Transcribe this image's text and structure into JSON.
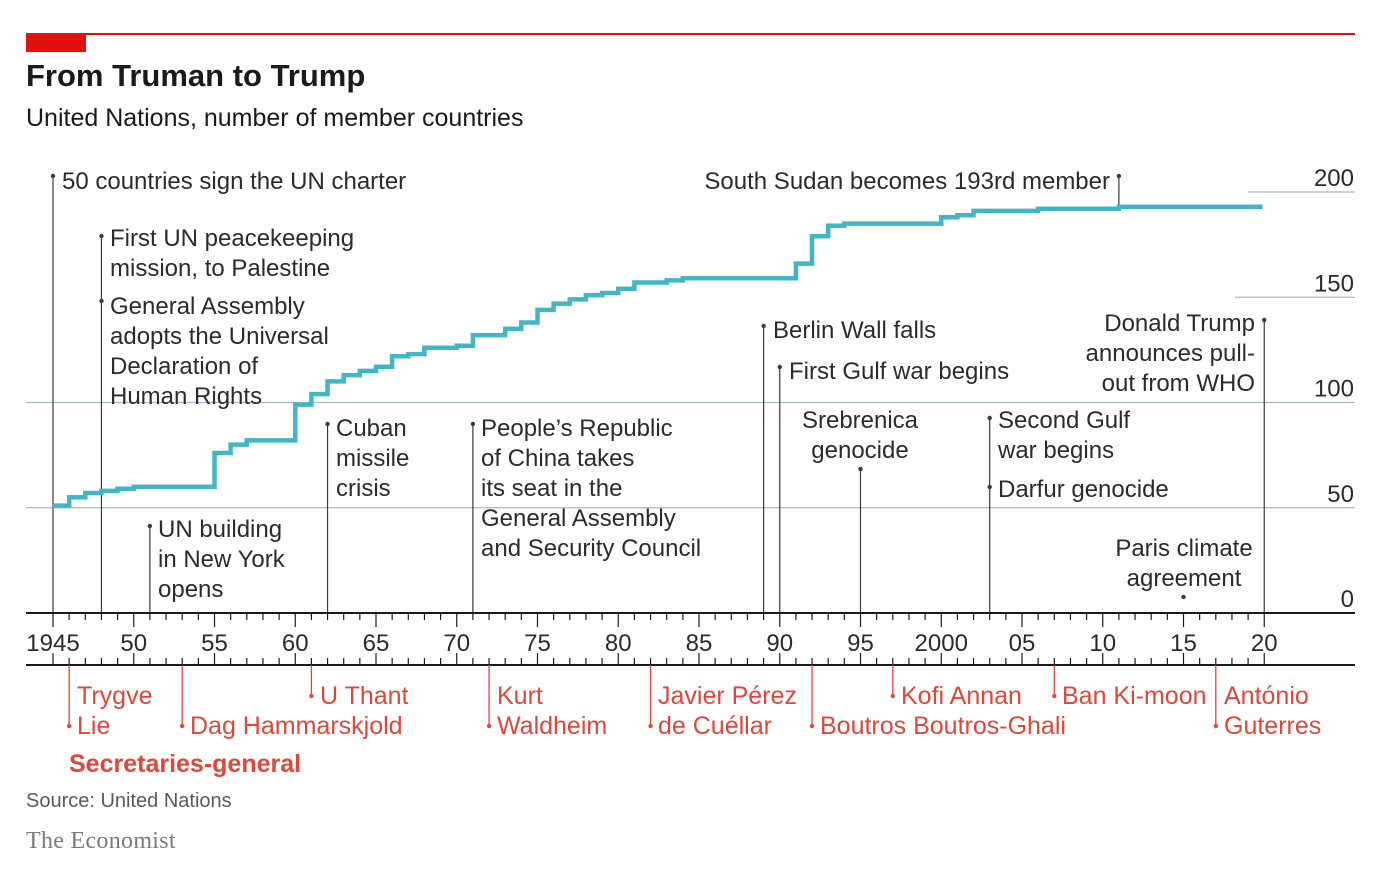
{
  "header": {
    "title": "From Truman to Trump",
    "subtitle": "United Nations, number of member countries"
  },
  "footer": {
    "source": "Source: United Nations",
    "brand": "The Economist"
  },
  "colors": {
    "line": "#41b6c4",
    "accent_red": "#e3120b",
    "secretaries": "#e0463a",
    "grid": "#aab8c8",
    "axis": "#1a1a1a"
  },
  "chart_data": {
    "type": "line",
    "step": true,
    "title": "From Truman to Trump",
    "subtitle": "United Nations, number of member countries",
    "xlim": [
      1945,
      2020
    ],
    "ylim": [
      0,
      200
    ],
    "y_ticks": [
      0,
      50,
      100,
      150,
      200
    ],
    "x_tick_labels": [
      {
        "year": 1945,
        "label": "1945"
      },
      {
        "year": 1950,
        "label": "50"
      },
      {
        "year": 1955,
        "label": "55"
      },
      {
        "year": 1960,
        "label": "60"
      },
      {
        "year": 1965,
        "label": "65"
      },
      {
        "year": 1970,
        "label": "70"
      },
      {
        "year": 1975,
        "label": "75"
      },
      {
        "year": 1980,
        "label": "80"
      },
      {
        "year": 1985,
        "label": "85"
      },
      {
        "year": 1990,
        "label": "90"
      },
      {
        "year": 1995,
        "label": "95"
      },
      {
        "year": 2000,
        "label": "2000"
      },
      {
        "year": 2005,
        "label": "05"
      },
      {
        "year": 2010,
        "label": "10"
      },
      {
        "year": 2015,
        "label": "15"
      },
      {
        "year": 2020,
        "label": "20"
      }
    ],
    "grid": true,
    "series": [
      {
        "x": [
          1945,
          1946,
          1947,
          1948,
          1949,
          1950,
          1951,
          1952,
          1953,
          1954,
          1955,
          1956,
          1957,
          1958,
          1959,
          1960,
          1961,
          1962,
          1963,
          1964,
          1965,
          1966,
          1967,
          1968,
          1969,
          1970,
          1971,
          1972,
          1973,
          1974,
          1975,
          1976,
          1977,
          1978,
          1979,
          1980,
          1981,
          1982,
          1983,
          1984,
          1985,
          1986,
          1987,
          1988,
          1989,
          1990,
          1991,
          1992,
          1993,
          1994,
          1995,
          1996,
          1997,
          1998,
          1999,
          2000,
          2001,
          2002,
          2003,
          2004,
          2005,
          2006,
          2007,
          2008,
          2009,
          2010,
          2011,
          2012,
          2013,
          2014,
          2015,
          2016,
          2017,
          2018,
          2019
        ],
        "y": [
          51,
          55,
          57,
          58,
          59,
          60,
          60,
          60,
          60,
          60,
          76,
          80,
          82,
          82,
          82,
          99,
          104,
          110,
          113,
          115,
          117,
          122,
          123,
          126,
          126,
          127,
          132,
          132,
          135,
          138,
          144,
          147,
          149,
          151,
          152,
          154,
          157,
          157,
          158,
          159,
          159,
          159,
          159,
          159,
          159,
          159,
          166,
          179,
          184,
          185,
          185,
          185,
          185,
          185,
          185,
          188,
          189,
          191,
          191,
          191,
          191,
          192,
          192,
          192,
          192,
          192,
          193,
          193,
          193,
          193,
          193,
          193,
          193,
          193,
          193
        ]
      }
    ],
    "annotations": [
      {
        "year": 1945,
        "lines": [
          "50 countries sign the UN charter"
        ]
      },
      {
        "year": 1948,
        "lines": [
          "First UN peacekeeping",
          "mission, to Palestine"
        ]
      },
      {
        "year": 1948,
        "lines": [
          "General Assembly",
          "adopts the Universal",
          "Declaration of",
          "Human Rights"
        ]
      },
      {
        "year": 1951,
        "lines": [
          "UN building",
          "in New York",
          "opens"
        ]
      },
      {
        "year": 1962,
        "lines": [
          "Cuban",
          "missile",
          "crisis"
        ]
      },
      {
        "year": 1971,
        "lines": [
          "People’s Republic",
          "of China takes",
          "its seat in the",
          "General Assembly",
          "and Security Council"
        ]
      },
      {
        "year": 1989,
        "lines": [
          "Berlin Wall falls"
        ]
      },
      {
        "year": 1990,
        "lines": [
          "First Gulf war begins"
        ]
      },
      {
        "year": 1995,
        "lines": [
          "Srebrenica",
          "genocide"
        ]
      },
      {
        "year": 2003,
        "lines": [
          "Second Gulf",
          "war begins"
        ]
      },
      {
        "year": 2003,
        "lines": [
          "Darfur genocide"
        ]
      },
      {
        "year": 2011,
        "lines": [
          "South Sudan becomes 193rd member"
        ]
      },
      {
        "year": 2015,
        "lines": [
          "Paris climate",
          "agreement"
        ]
      },
      {
        "year": 2020,
        "lines": [
          "Donald Trump",
          "announces pull-",
          "out from WHO"
        ]
      }
    ],
    "secretaries_general": {
      "heading": "Secretaries-general",
      "items": [
        {
          "year": 1946,
          "lines": [
            "Trygve",
            "Lie"
          ]
        },
        {
          "year": 1953,
          "lines": [
            "Dag Hammarskjold"
          ]
        },
        {
          "year": 1961,
          "lines": [
            "U Thant"
          ]
        },
        {
          "year": 1972,
          "lines": [
            "Kurt",
            "Waldheim"
          ]
        },
        {
          "year": 1982,
          "lines": [
            "Javier Pérez",
            "de Cuéllar"
          ]
        },
        {
          "year": 1992,
          "lines": [
            "Boutros Boutros-Ghali"
          ]
        },
        {
          "year": 1997,
          "lines": [
            "Kofi Annan"
          ]
        },
        {
          "year": 2007,
          "lines": [
            "Ban Ki-moon"
          ]
        },
        {
          "year": 2017,
          "lines": [
            "António",
            "Guterres"
          ]
        }
      ]
    }
  }
}
